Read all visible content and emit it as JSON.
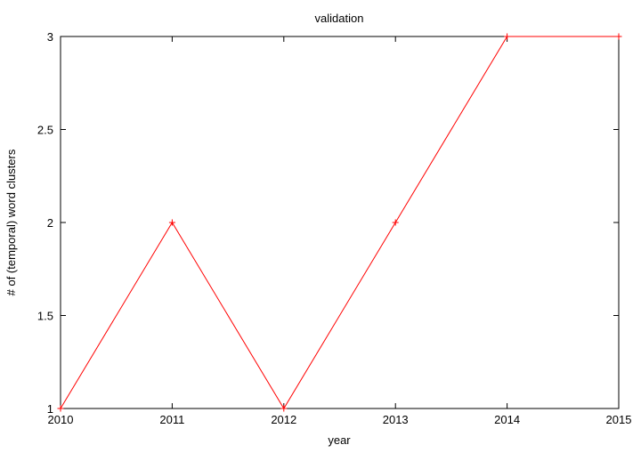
{
  "chart_data": {
    "type": "line",
    "title": "validation",
    "xlabel": "year",
    "ylabel": "# of (temporal) word clusters",
    "x": [
      2010,
      2011,
      2012,
      2013,
      2014,
      2015
    ],
    "series": [
      {
        "values": [
          1,
          2,
          1,
          2,
          3,
          3
        ],
        "color": "#ff0000",
        "marker": "plus"
      }
    ],
    "xlim": [
      2010,
      2015
    ],
    "ylim": [
      1,
      3
    ],
    "x_ticks": [
      2010,
      2011,
      2012,
      2013,
      2014,
      2015
    ],
    "y_ticks": [
      1,
      1.5,
      2,
      2.5,
      3
    ],
    "grid": false,
    "legend": "none"
  }
}
